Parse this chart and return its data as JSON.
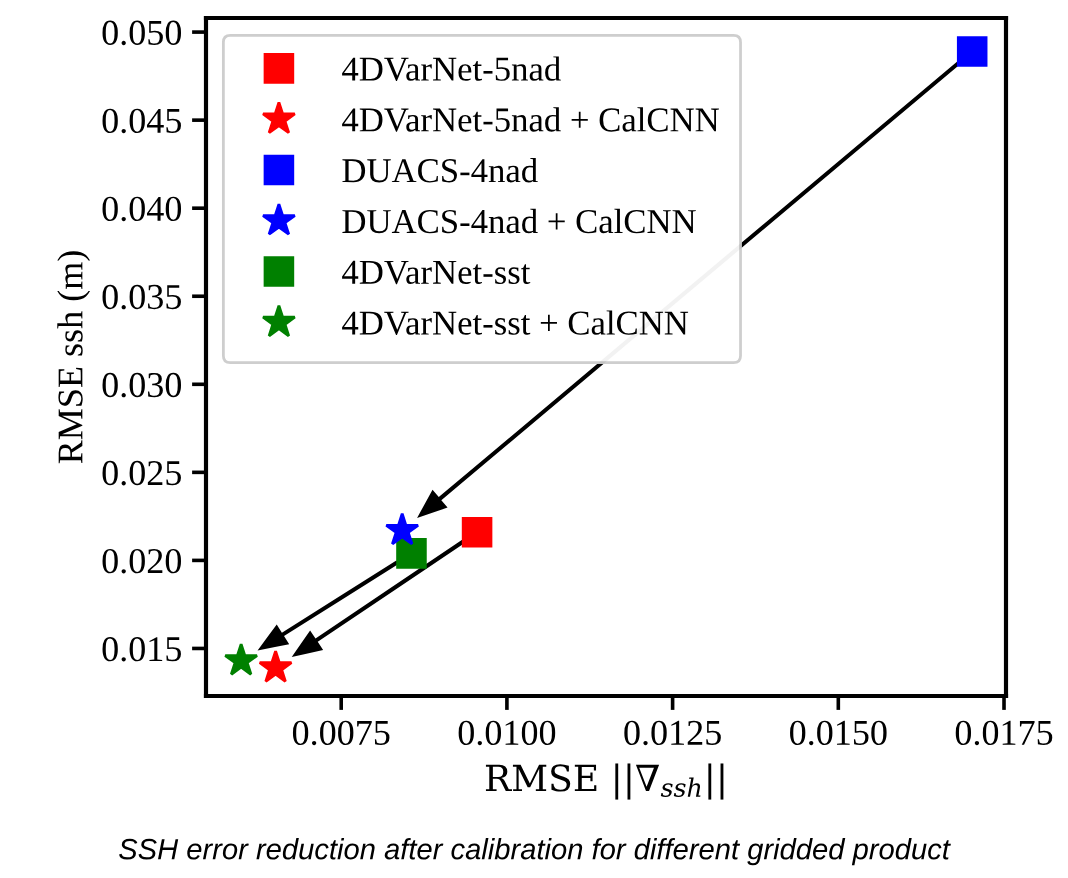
{
  "chart_data": {
    "type": "scatter",
    "xlabel": "RMSE ||∇$_{ssh}$||",
    "ylabel": "RMSE ssh (m)",
    "series": [
      {
        "name": "4DVarNet-5nad",
        "color": "#ff0000",
        "marker": "square",
        "x": [
          0.00955
        ],
        "values": [
          0.0216
        ]
      },
      {
        "name": "4DVarNet-5nad + CalCNN",
        "color": "#ff0000",
        "marker": "star",
        "x": [
          0.00651
        ],
        "values": [
          0.0139
        ]
      },
      {
        "name": "DUACS-4nad",
        "color": "#0000ff",
        "marker": "square",
        "x": [
          0.01702
        ],
        "values": [
          0.0489
        ]
      },
      {
        "name": "DUACS-4nad + CalCNN",
        "color": "#0000ff",
        "marker": "star",
        "x": [
          0.00842
        ],
        "values": [
          0.0217
        ]
      },
      {
        "name": "4DVarNet-sst",
        "color": "#008000",
        "marker": "square",
        "x": [
          0.00856
        ],
        "values": [
          0.0204
        ]
      },
      {
        "name": "4DVarNet-sst + CalCNN",
        "color": "#008000",
        "marker": "star",
        "x": [
          0.00599
        ],
        "values": [
          0.0143
        ]
      }
    ],
    "xlim": [
      0.00546,
      0.01753
    ],
    "xticks": [
      {
        "value": 0.0075,
        "label": "0.0075"
      },
      {
        "value": 0.01,
        "label": "0.0100"
      },
      {
        "value": 0.0125,
        "label": "0.0125"
      },
      {
        "value": 0.015,
        "label": "0.0150"
      },
      {
        "value": 0.0175,
        "label": "0.0175"
      }
    ],
    "ylim": [
      0.0123,
      0.0508
    ],
    "yticks": [
      {
        "value": 0.015,
        "label": "0.015"
      },
      {
        "value": 0.02,
        "label": "0.020"
      },
      {
        "value": 0.025,
        "label": "0.025"
      },
      {
        "value": 0.03,
        "label": "0.030"
      },
      {
        "value": 0.035,
        "label": "0.035"
      },
      {
        "value": 0.04,
        "label": "0.040"
      },
      {
        "value": 0.045,
        "label": "0.045"
      },
      {
        "value": 0.05,
        "label": "0.050"
      }
    ],
    "grid": false,
    "legend": "top left",
    "annotations": [
      "SSH error reduction after calibration for different gridded product"
    ]
  }
}
